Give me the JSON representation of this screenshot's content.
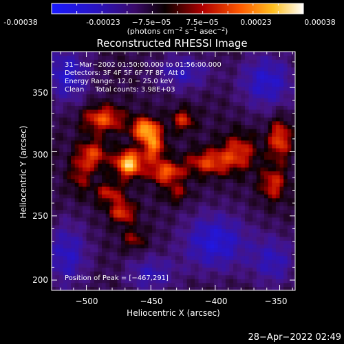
{
  "colorbar": {
    "ticks": [
      "-0.00038",
      "-0.00023",
      "−7.5e−05",
      "7.5e−05",
      "0.00023",
      "0.00038"
    ],
    "units_lead": "(photons cm",
    "units_sup1": "−2",
    "units_mid": " s",
    "units_sup2": "−1",
    "units_tail1": " asec",
    "units_sup3": "−2",
    "units_close": ")"
  },
  "plot": {
    "title": "Reconstructed RHESSI Image",
    "xlabel": "Heliocentric X (arcsec)",
    "ylabel": "Heliocentric Y (arcsec)",
    "xticks": [
      "−500",
      "−450",
      "−400",
      "−350"
    ],
    "yticks": [
      "200",
      "250",
      "300",
      "350"
    ],
    "info": [
      "31−Mar−2002 01:50:00.000 to 01:56:00.000",
      "Detectors: 3F 4F 5F 6F 7F 8F, Att 0",
      "Energy Range: 12.0 − 25.0 keV",
      "Clean     Total counts: 3.98E+03"
    ],
    "peak_label": "Position of Peak = [−467,291]"
  },
  "footer": {
    "timestamp": "28−Apr−2022 02:49"
  },
  "chart_data": {
    "type": "heatmap",
    "title": "Reconstructed RHESSI Image",
    "xlabel": "Heliocentric X (arcsec)",
    "ylabel": "Heliocentric Y (arcsec)",
    "xlim": [
      -527,
      -338
    ],
    "ylim": [
      192,
      378
    ],
    "x_tick_values": [
      -500,
      -450,
      -400,
      -350
    ],
    "y_tick_values": [
      200,
      250,
      300,
      350
    ],
    "color_range": [
      -0.00038,
      0.00038
    ],
    "colormap": "black-purple-red-orange-yellow-white",
    "peak": [
      -467,
      291
    ],
    "sources": [
      {
        "x": -467,
        "y": 291,
        "amp": 0.00038,
        "sx": 7,
        "sy": 7
      },
      {
        "x": -455,
        "y": 318,
        "amp": 0.0003,
        "sx": 7,
        "sy": 6
      },
      {
        "x": -448,
        "y": 305,
        "amp": 0.00026,
        "sx": 6,
        "sy": 9
      },
      {
        "x": -487,
        "y": 326,
        "amp": 0.00023,
        "sx": 11,
        "sy": 7
      },
      {
        "x": -495,
        "y": 298,
        "amp": 0.0002,
        "sx": 8,
        "sy": 8
      },
      {
        "x": -438,
        "y": 284,
        "amp": 0.00024,
        "sx": 9,
        "sy": 6
      },
      {
        "x": -425,
        "y": 325,
        "amp": 0.00018,
        "sx": 6,
        "sy": 6
      },
      {
        "x": -405,
        "y": 292,
        "amp": 0.0002,
        "sx": 12,
        "sy": 7
      },
      {
        "x": -382,
        "y": 300,
        "amp": 0.00018,
        "sx": 10,
        "sy": 10
      },
      {
        "x": -350,
        "y": 310,
        "amp": 0.00022,
        "sx": 6,
        "sy": 11
      },
      {
        "x": -355,
        "y": 275,
        "amp": 0.00018,
        "sx": 7,
        "sy": 9
      },
      {
        "x": -472,
        "y": 253,
        "amp": 0.0002,
        "sx": 7,
        "sy": 6
      },
      {
        "x": -482,
        "y": 268,
        "amp": 0.00016,
        "sx": 8,
        "sy": 6
      },
      {
        "x": -463,
        "y": 232,
        "amp": 0.00012,
        "sx": 6,
        "sy": 6
      },
      {
        "x": -505,
        "y": 282,
        "amp": 0.00012,
        "sx": 6,
        "sy": 10
      },
      {
        "x": -430,
        "y": 268,
        "amp": 0.00012,
        "sx": 7,
        "sy": 5
      },
      {
        "x": -515,
        "y": 360,
        "amp": -0.0002,
        "sx": 12,
        "sy": 15
      },
      {
        "x": -360,
        "y": 355,
        "amp": -0.0002,
        "sx": 15,
        "sy": 15
      },
      {
        "x": -400,
        "y": 230,
        "amp": -0.00022,
        "sx": 18,
        "sy": 16
      },
      {
        "x": -515,
        "y": 220,
        "amp": -0.00018,
        "sx": 12,
        "sy": 18
      },
      {
        "x": -425,
        "y": 362,
        "amp": -0.00016,
        "sx": 15,
        "sy": 10
      },
      {
        "x": -450,
        "y": 205,
        "amp": -0.00015,
        "sx": 14,
        "sy": 10
      },
      {
        "x": -355,
        "y": 215,
        "amp": -0.00016,
        "sx": 12,
        "sy": 14
      }
    ]
  }
}
